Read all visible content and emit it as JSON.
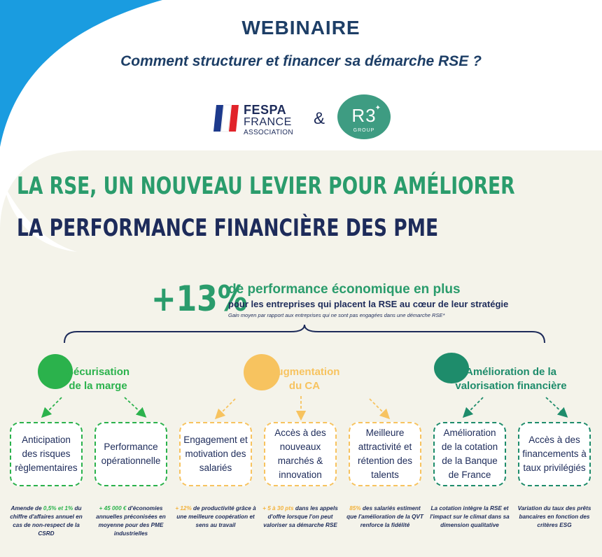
{
  "header": {
    "title": "WEBINAIRE",
    "subtitle": "Comment structurer et financer sa démarche RSE ?",
    "ampersand": "&"
  },
  "logos": {
    "fespa_line1": "FESPA",
    "fespa_line2": "FRANCE",
    "fespa_line3": "ASSOCIATION",
    "r3_main": "R3",
    "r3_sub": "GROUP"
  },
  "headline": {
    "line1": "LA RSE, UN NOUVEAU LEVIER POUR AMÉLIORER",
    "line2": "LA PERFORMANCE FINANCIÈRE DES PME"
  },
  "stat": {
    "value": "+13%",
    "line1": "de performance économique en plus",
    "line2": "pour les entreprises qui placent la RSE au cœur de leur stratégie",
    "line3": "Gain moyen par rapport aux entreprises qui ne sont pas engagées dans une démarche RSE*"
  },
  "categories": [
    {
      "line1": "Sécurisation",
      "line2": "de la marge"
    },
    {
      "line1": "Augmentation",
      "line2": "du CA"
    },
    {
      "line1": "Amélioration de la",
      "line2": "valorisation financière"
    }
  ],
  "boxes": [
    {
      "label": "Anticipation des risques règlementaires"
    },
    {
      "label": "Performance opérationnelle"
    },
    {
      "label": "Engagement et motivation des salariés"
    },
    {
      "label": "Accès à des nouveaux marchés & innovation"
    },
    {
      "label": "Meilleure attractivité et rétention des talents"
    },
    {
      "label": "Amélioration de la cotation de la Banque de France"
    },
    {
      "label": "Accès à des financements à taux privilégiés"
    }
  ],
  "notes": [
    {
      "pre": "Amende de ",
      "hl": "0,5% et 1%",
      "post": " du chiffre d'affaires annuel en cas de non-respect de la CSRD"
    },
    {
      "pre": "",
      "hl": "+ 45 000 €",
      "post": " d'économies annuelles préconisées en moyenne pour des PME industrielles"
    },
    {
      "pre": "",
      "hl": "+ 12%",
      "post": " de productivité grâce à une meilleure coopération et sens au travail"
    },
    {
      "pre": "",
      "hl": "+ 5 à 30 pts",
      "post": " dans les appels d'offre lorsque l'on peut valoriser sa démarche RSE"
    },
    {
      "pre": "",
      "hl": "85%",
      "post": " des salariés estiment que l'amélioration de la QVT renforce la fidélité"
    },
    {
      "pre": "La cotation intègre la RSE et l'impact sur le climat dans sa dimension qualitative",
      "hl": "",
      "post": ""
    },
    {
      "pre": "Variation du taux des prêts bancaires en fonction des critères ESG",
      "hl": "",
      "post": ""
    }
  ],
  "colors": {
    "navy": "#1d2b5a",
    "green": "#2bb24c",
    "yellow": "#f7c35f",
    "teal": "#1e8c6b",
    "headline_green": "#2a9c6c"
  }
}
